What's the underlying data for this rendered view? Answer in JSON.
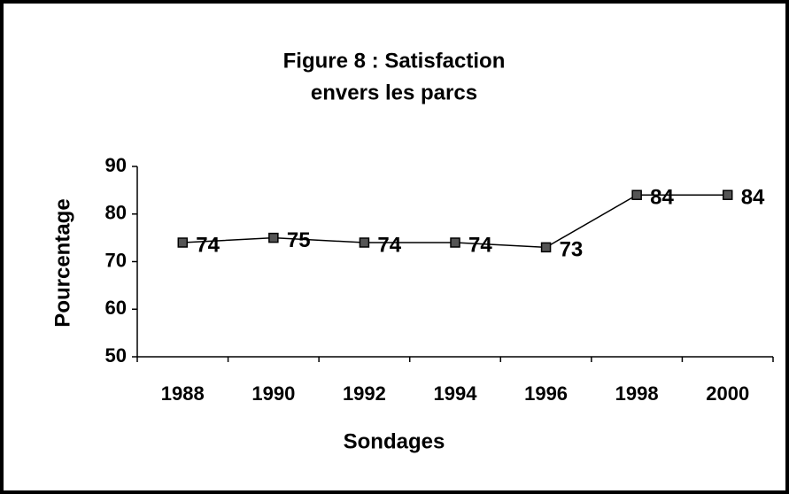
{
  "chart_data": {
    "type": "line",
    "title": [
      "Figure 8 : Satisfaction",
      "envers les parcs"
    ],
    "x_label": "Sondages",
    "y_label": "Pourcentage",
    "categories": [
      "1988",
      "1990",
      "1992",
      "1994",
      "1996",
      "1998",
      "2000"
    ],
    "values": [
      74,
      75,
      74,
      74,
      73,
      84,
      84
    ],
    "color": "#000000",
    "ylim": [
      50,
      90
    ],
    "yticks": [
      50,
      60,
      70,
      80,
      90
    ],
    "grid": false
  }
}
